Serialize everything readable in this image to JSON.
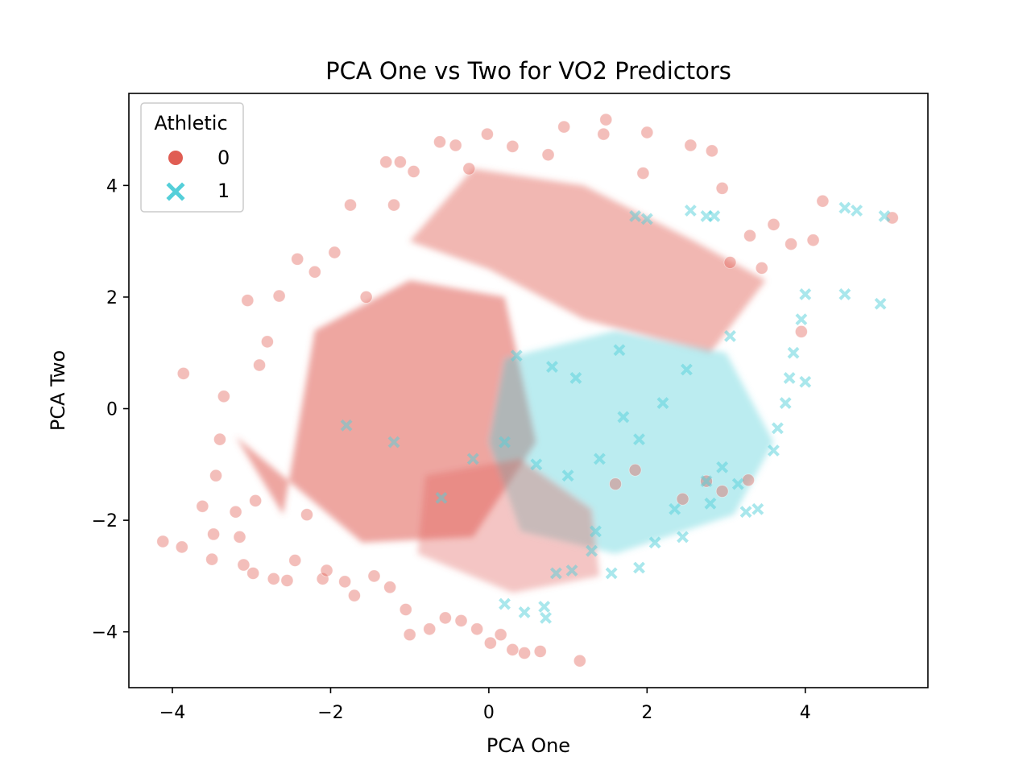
{
  "chart_data": {
    "type": "scatter",
    "title": "PCA One vs Two for VO2 Predictors",
    "xlabel": "PCA One",
    "ylabel": "PCA Two",
    "xlim": [
      -4.55,
      5.55
    ],
    "ylim": [
      -5.0,
      5.65
    ],
    "x_ticks": [
      -4,
      -2,
      0,
      2,
      4
    ],
    "x_tick_labels": [
      "−4",
      "−2",
      "0",
      "2",
      "4"
    ],
    "y_ticks": [
      -4,
      -2,
      0,
      2,
      4
    ],
    "y_tick_labels": [
      "−4",
      "−2",
      "0",
      "2",
      "4"
    ],
    "grid": false,
    "legend": {
      "title": "Athletic",
      "position": "top-left",
      "entries": [
        {
          "label": "0",
          "marker": "circle",
          "color": "#e05d53"
        },
        {
          "label": "1",
          "marker": "x",
          "color": "#54cfd9"
        }
      ]
    },
    "series": [
      {
        "name": "0",
        "marker": "circle",
        "color": "#e05d53",
        "points": [
          [
            -4.12,
            -2.38
          ],
          [
            -3.88,
            -2.48
          ],
          [
            -3.86,
            0.63
          ],
          [
            -3.62,
            -1.75
          ],
          [
            -3.5,
            -2.7
          ],
          [
            -3.48,
            -2.25
          ],
          [
            -3.45,
            -1.2
          ],
          [
            -3.4,
            -0.55
          ],
          [
            -3.35,
            0.22
          ],
          [
            -3.2,
            -1.85
          ],
          [
            -3.15,
            -2.3
          ],
          [
            -3.1,
            -2.8
          ],
          [
            -3.05,
            1.94
          ],
          [
            -2.98,
            -2.95
          ],
          [
            -2.95,
            -1.65
          ],
          [
            -2.9,
            0.78
          ],
          [
            -2.8,
            1.2
          ],
          [
            -2.72,
            -3.05
          ],
          [
            -2.65,
            2.02
          ],
          [
            -2.55,
            -3.08
          ],
          [
            -2.45,
            -2.72
          ],
          [
            -2.42,
            2.68
          ],
          [
            -2.3,
            -1.9
          ],
          [
            -2.2,
            2.45
          ],
          [
            -2.1,
            -3.05
          ],
          [
            -2.05,
            -2.9
          ],
          [
            -1.95,
            2.8
          ],
          [
            -1.82,
            -3.1
          ],
          [
            -1.75,
            3.65
          ],
          [
            -1.7,
            -3.35
          ],
          [
            -1.55,
            2.0
          ],
          [
            -1.45,
            -3.0
          ],
          [
            -1.3,
            4.42
          ],
          [
            -1.25,
            -3.2
          ],
          [
            -1.2,
            3.65
          ],
          [
            -1.12,
            4.42
          ],
          [
            -1.05,
            -3.6
          ],
          [
            -1.0,
            -4.05
          ],
          [
            -0.95,
            4.25
          ],
          [
            -0.75,
            -3.95
          ],
          [
            -0.62,
            4.78
          ],
          [
            -0.55,
            -3.75
          ],
          [
            -0.42,
            4.72
          ],
          [
            -0.35,
            -3.8
          ],
          [
            -0.25,
            4.3
          ],
          [
            -0.15,
            -3.95
          ],
          [
            -0.02,
            4.92
          ],
          [
            0.02,
            -4.2
          ],
          [
            0.15,
            -4.05
          ],
          [
            0.3,
            4.7
          ],
          [
            0.3,
            -4.32
          ],
          [
            0.45,
            -4.38
          ],
          [
            0.65,
            -4.35
          ],
          [
            0.75,
            4.55
          ],
          [
            0.95,
            5.05
          ],
          [
            1.15,
            -4.52
          ],
          [
            1.45,
            4.92
          ],
          [
            1.48,
            5.18
          ],
          [
            1.95,
            4.22
          ],
          [
            2.0,
            4.95
          ],
          [
            2.55,
            4.72
          ],
          [
            2.82,
            4.62
          ],
          [
            2.95,
            3.95
          ],
          [
            3.05,
            2.62
          ],
          [
            3.3,
            3.1
          ],
          [
            3.6,
            3.3
          ],
          [
            3.82,
            2.95
          ],
          [
            4.1,
            3.02
          ],
          [
            4.22,
            3.72
          ],
          [
            5.1,
            3.42
          ],
          [
            3.95,
            1.38
          ],
          [
            3.45,
            2.52
          ],
          [
            2.95,
            -1.48
          ],
          [
            3.28,
            -1.28
          ],
          [
            2.75,
            -1.3
          ],
          [
            2.45,
            -1.62
          ],
          [
            1.85,
            -1.1
          ],
          [
            1.6,
            -1.35
          ]
        ]
      },
      {
        "name": "1",
        "marker": "x",
        "color": "#54cfd9",
        "points": [
          [
            0.2,
            -3.5
          ],
          [
            0.45,
            -3.65
          ],
          [
            0.7,
            -3.55
          ],
          [
            0.72,
            -3.75
          ],
          [
            0.85,
            -2.95
          ],
          [
            1.05,
            -2.9
          ],
          [
            1.3,
            -2.55
          ],
          [
            1.55,
            -2.95
          ],
          [
            1.9,
            -2.85
          ],
          [
            2.1,
            -2.4
          ],
          [
            2.45,
            -2.3
          ],
          [
            2.75,
            -1.3
          ],
          [
            2.8,
            -1.7
          ],
          [
            2.95,
            -1.05
          ],
          [
            3.15,
            -1.35
          ],
          [
            3.25,
            -1.85
          ],
          [
            3.4,
            -1.8
          ],
          [
            3.6,
            -0.75
          ],
          [
            3.65,
            -0.35
          ],
          [
            3.75,
            0.1
          ],
          [
            3.8,
            0.55
          ],
          [
            4.0,
            0.48
          ],
          [
            3.85,
            1.0
          ],
          [
            3.95,
            1.6
          ],
          [
            4.0,
            2.05
          ],
          [
            4.5,
            2.05
          ],
          [
            4.95,
            1.88
          ],
          [
            4.5,
            3.6
          ],
          [
            4.65,
            3.55
          ],
          [
            5.0,
            3.45
          ],
          [
            2.55,
            3.55
          ],
          [
            2.75,
            3.45
          ],
          [
            2.85,
            3.45
          ],
          [
            1.85,
            3.45
          ],
          [
            2.0,
            3.4
          ],
          [
            3.05,
            1.3
          ],
          [
            2.5,
            0.7
          ],
          [
            2.2,
            0.1
          ],
          [
            1.9,
            -0.55
          ],
          [
            1.4,
            -0.9
          ],
          [
            1.0,
            -1.2
          ],
          [
            0.6,
            -1.0
          ],
          [
            0.2,
            -0.6
          ],
          [
            -0.2,
            -0.9
          ],
          [
            -0.6,
            -1.6
          ],
          [
            -1.2,
            -0.6
          ],
          [
            -1.8,
            -0.3
          ],
          [
            1.1,
            0.55
          ],
          [
            1.65,
            1.05
          ],
          [
            0.8,
            0.75
          ],
          [
            0.35,
            0.95
          ],
          [
            1.35,
            -2.2
          ],
          [
            2.35,
            -1.8
          ],
          [
            1.7,
            -0.15
          ]
        ]
      }
    ]
  }
}
